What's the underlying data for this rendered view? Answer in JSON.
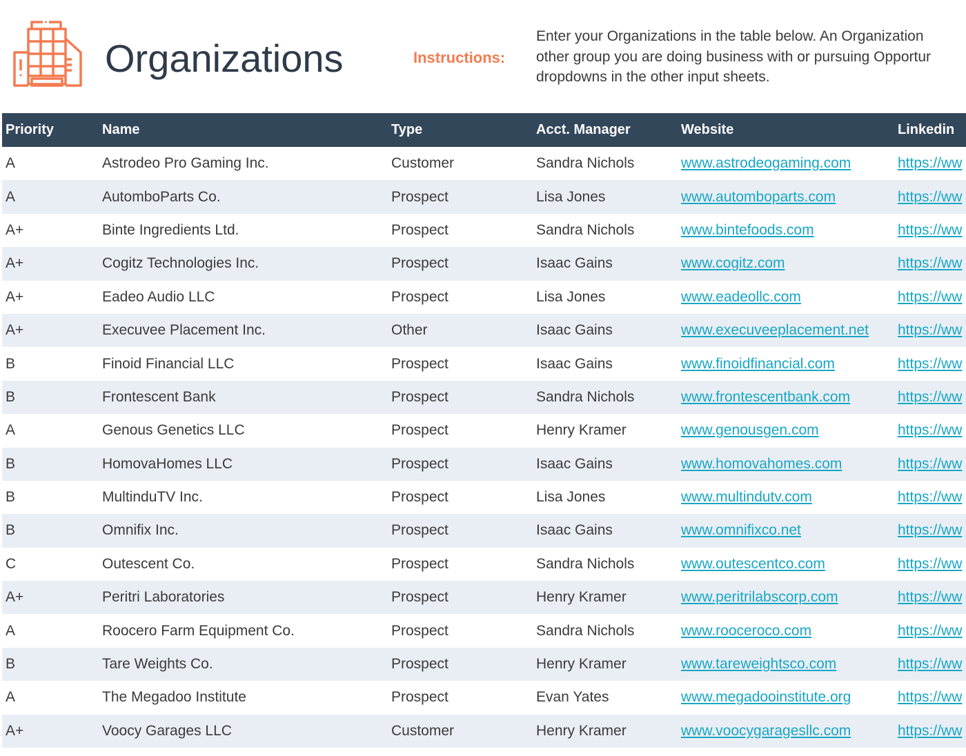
{
  "header": {
    "title": "Organizations",
    "instructions_label": "Instructions:",
    "instructions_lines": [
      "Enter your Organizations in the table below. An Organization",
      "other group you are doing business with or pursuing Opportur",
      "dropdowns in the other input sheets."
    ]
  },
  "colors": {
    "accent": "#f47b50",
    "header_bg": "#33475b",
    "alt_row": "#e9eef5",
    "link": "#17a6c4"
  },
  "table": {
    "columns": [
      "Priority",
      "Name",
      "Type",
      "Acct. Manager",
      "Website",
      "Linkedin"
    ],
    "rows": [
      [
        "A",
        "Astrodeo Pro Gaming Inc.",
        "Customer",
        "Sandra Nichols",
        "www.astrodeogaming.com",
        "https://ww"
      ],
      [
        "A",
        "AutomboParts Co.",
        "Prospect",
        "Lisa Jones",
        "www.automboparts.com",
        "https://ww"
      ],
      [
        "A+",
        "Binte Ingredients Ltd.",
        "Prospect",
        "Sandra Nichols",
        "www.bintefoods.com",
        "https://ww"
      ],
      [
        "A+",
        "Cogitz Technologies Inc.",
        "Prospect",
        "Isaac Gains",
        "www.cogitz.com",
        "https://ww"
      ],
      [
        "A+",
        "Eadeo Audio LLC",
        "Prospect",
        "Lisa Jones",
        "www.eadeollc.com",
        "https://ww"
      ],
      [
        "A+",
        "Execuvee Placement Inc.",
        "Other",
        "Isaac Gains",
        "www.execuveeplacement.net",
        "https://ww"
      ],
      [
        "B",
        "Finoid Financial LLC",
        "Prospect",
        "Isaac Gains",
        "www.finoidfinancial.com",
        "https://ww"
      ],
      [
        "B",
        "Frontescent Bank",
        "Prospect",
        "Sandra Nichols",
        "www.frontescentbank.com",
        "https://ww"
      ],
      [
        "A",
        "Genous Genetics LLC",
        "Prospect",
        "Henry Kramer",
        "www.genousgen.com",
        "https://ww"
      ],
      [
        "B",
        "HomovaHomes LLC",
        "Prospect",
        "Isaac Gains",
        "www.homovahomes.com",
        "https://ww"
      ],
      [
        "B",
        "MultinduTV Inc.",
        "Prospect",
        "Lisa Jones",
        "www.multindutv.com",
        "https://ww"
      ],
      [
        "B",
        "Omnifix Inc.",
        "Prospect",
        "Isaac Gains",
        "www.omnifixco.net",
        "https://ww"
      ],
      [
        "C",
        "Outescent Co.",
        "Prospect",
        "Sandra Nichols",
        "www.outescentco.com",
        "https://ww"
      ],
      [
        "A+",
        "Peritri Laboratories",
        "Prospect",
        "Henry Kramer",
        "www.peritrilabscorp.com",
        "https://ww"
      ],
      [
        "A",
        "Roocero Farm Equipment Co.",
        "Prospect",
        "Sandra Nichols",
        "www.rooceroco.com",
        "https://ww"
      ],
      [
        "B",
        "Tare Weights Co.",
        "Prospect",
        "Henry Kramer",
        "www.tareweightsco.com",
        "https://ww"
      ],
      [
        "A",
        "The Megadoo Institute",
        "Prospect",
        "Evan Yates",
        "www.megadooinstitute.org",
        "https://ww"
      ],
      [
        "A+",
        "Voocy Garages LLC",
        "Customer",
        "Henry Kramer",
        "www.voocygaragesllc.com",
        "https://ww"
      ]
    ]
  }
}
